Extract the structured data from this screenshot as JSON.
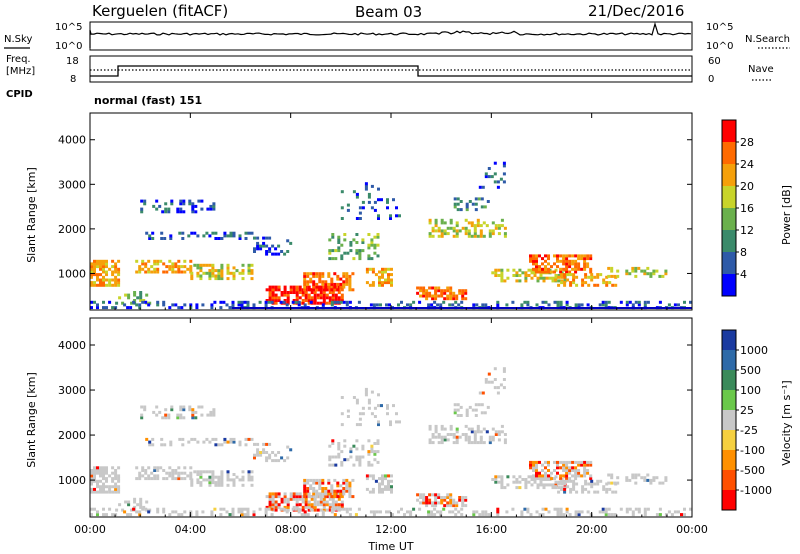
{
  "header": {
    "station": "Kerguelen (fitACF)",
    "beam": "Beam 03",
    "date": "21/Dec/2016"
  },
  "summary_panel": {
    "nsky_label": "N.Sky",
    "nsearch_label": "N.Search",
    "left_ticks": [
      "10^5",
      "10^0"
    ],
    "right_ticks": [
      "10^5",
      "10^0"
    ]
  },
  "freq_panel": {
    "freq_label_line1": "Freq.",
    "freq_label_line2": "[MHz]",
    "nave_label": "Nave",
    "left_ticks": [
      "18",
      "8"
    ],
    "right_ticks": [
      "60",
      "0"
    ],
    "cpid_label": "CPID",
    "cpid_value": "normal (fast) 151"
  },
  "chart_data": [
    {
      "type": "heatmap",
      "title": "",
      "ylabel": "Slant Range [km]",
      "ylim": [
        180,
        4600
      ],
      "yticks": [
        "1000",
        "2000",
        "3000",
        "4000"
      ],
      "colorbar_label": "Power [dB]",
      "colorbar_ticks": [
        "4",
        "8",
        "12",
        "16",
        "20",
        "24",
        "28"
      ],
      "colorbar_colors": [
        "#0000ff",
        "#2e5aa8",
        "#3a8a6a",
        "#6ab04c",
        "#c8d42a",
        "#f5a00a",
        "#ff6a00",
        "#ff0000"
      ]
    },
    {
      "type": "heatmap",
      "title": "",
      "ylabel": "Slant Range [km]",
      "ylim": [
        180,
        4600
      ],
      "yticks": [
        "1000",
        "2000",
        "3000",
        "4000"
      ],
      "xlabel": "Time UT",
      "xticks": [
        "00:00",
        "04:00",
        "08:00",
        "12:00",
        "16:00",
        "20:00",
        "00:00"
      ],
      "colorbar_label": "Velocity [m s⁻¹]",
      "colorbar_ticks": [
        "1000",
        "500",
        "100",
        "25",
        "-25",
        "-100",
        "-500",
        "-1000"
      ],
      "colorbar_colors": [
        "#1a3aa0",
        "#2e6aa8",
        "#3a8a5a",
        "#6ac84a",
        "#c8c8c8",
        "#f5d040",
        "#ff9000",
        "#ff5000",
        "#ff0000"
      ]
    }
  ]
}
